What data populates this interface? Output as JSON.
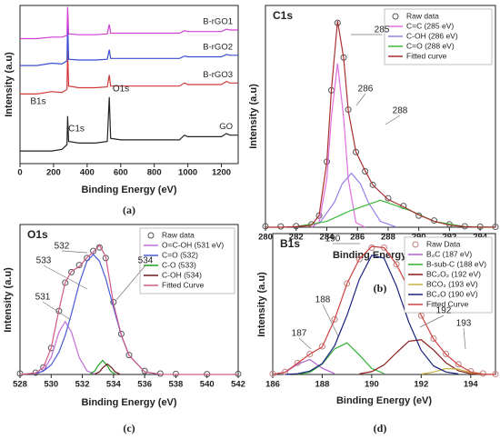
{
  "chart_data": [
    {
      "type": "line",
      "caption": "(a)",
      "xlabel": "Binding Energy (eV)",
      "ylabel": "Intensity (a.u)",
      "xlim": [
        0,
        1300
      ],
      "xticks": [
        0,
        200,
        400,
        600,
        800,
        1000,
        1200
      ],
      "ylim": [
        0,
        100
      ],
      "legend": false,
      "annotations": [
        "C1s",
        "O1s",
        "B1s"
      ],
      "series": [
        {
          "name": "GO",
          "color": "#222222",
          "style": "line",
          "x": [
            0,
            100,
            190,
            250,
            280,
            284,
            290,
            350,
            450,
            520,
            532,
            540,
            600,
            800,
            950,
            980,
            1000,
            1100,
            1200,
            1230,
            1250,
            1300
          ],
          "values": [
            8,
            8,
            8,
            9,
            12,
            30,
            14,
            13,
            13,
            14,
            42,
            16,
            15,
            15,
            15,
            18,
            17,
            17,
            17,
            19,
            18,
            18
          ]
        },
        {
          "name": "B-rGO3",
          "color": "#d03a3a",
          "style": "line",
          "x": [
            0,
            100,
            190,
            250,
            280,
            284,
            290,
            350,
            450,
            520,
            532,
            540,
            600,
            800,
            950,
            980,
            1000,
            1100,
            1200,
            1230,
            1250,
            1300
          ],
          "values": [
            44,
            44,
            45.5,
            45,
            47,
            72,
            49,
            48,
            48,
            48.5,
            56,
            49,
            49,
            49,
            49,
            51,
            50,
            50,
            50,
            52,
            51,
            51
          ]
        },
        {
          "name": "B-rGO2",
          "color": "#3a4fd0",
          "style": "line",
          "x": [
            0,
            100,
            190,
            250,
            280,
            284,
            290,
            350,
            450,
            520,
            532,
            540,
            600,
            800,
            950,
            980,
            1000,
            1100,
            1200,
            1230,
            1250,
            1300
          ],
          "values": [
            62,
            62,
            63.5,
            63,
            65,
            90,
            66,
            65.5,
            65.5,
            66,
            72,
            66.5,
            66.5,
            66.5,
            66.5,
            68,
            67.5,
            67.5,
            67.5,
            69,
            68.5,
            68.5
          ]
        },
        {
          "name": "B-rGO1",
          "color": "#d040d0",
          "style": "line",
          "x": [
            0,
            100,
            190,
            250,
            280,
            284,
            290,
            350,
            450,
            520,
            532,
            540,
            600,
            800,
            950,
            980,
            1000,
            1100,
            1200,
            1230,
            1250,
            1300
          ],
          "values": [
            79,
            79,
            80,
            80,
            81,
            99,
            82,
            81.5,
            81.5,
            82,
            88,
            82.5,
            82.5,
            82.5,
            82.5,
            84,
            83.5,
            83.5,
            83.5,
            85,
            84.5,
            84.5
          ]
        }
      ]
    },
    {
      "type": "line",
      "title": "C1s",
      "caption": "(b)",
      "xlabel": "Binding Energy (eV)",
      "ylabel": "Intensity (a.u)",
      "xlim": [
        280,
        295
      ],
      "xticks": [
        280,
        282,
        284,
        286,
        288,
        290,
        292,
        294
      ],
      "ylim": [
        0,
        115
      ],
      "legend": "upper right",
      "annotations": [
        "285",
        "286",
        "288"
      ],
      "series": [
        {
          "name": "Raw data",
          "color": "#555555",
          "style": "markers",
          "x": [
            280,
            281,
            282,
            283,
            283.5,
            284,
            284.3,
            284.7,
            285.1,
            285.4,
            285.9,
            286.5,
            287,
            288,
            289,
            290,
            291,
            292,
            293,
            294,
            295
          ],
          "values": [
            0.5,
            0.4,
            0.6,
            1.5,
            6,
            34,
            71,
            106,
            88,
            61,
            39,
            29,
            22,
            15,
            11,
            6,
            3.5,
            1.5,
            0.5,
            0.3,
            0.2
          ]
        },
        {
          "name": "C=C (285 eV)",
          "color": "#e070e0",
          "style": "line",
          "x": [
            283,
            283.5,
            284,
            284.3,
            284.7,
            285.1,
            285.4,
            285.9,
            286.5
          ],
          "values": [
            0,
            2.4,
            25,
            57,
            85,
            57,
            25,
            2.4,
            0
          ]
        },
        {
          "name": "C-OH (286 eV)",
          "color": "#9a7fe8",
          "style": "line",
          "x": [
            283.5,
            284.5,
            285,
            285.6,
            286.2,
            286.7,
            287.5,
            288.5
          ],
          "values": [
            1.8,
            13,
            22.4,
            28,
            22.4,
            13,
            3,
            0.2
          ]
        },
        {
          "name": "C=O (288 eV)",
          "color": "#3cb83c",
          "style": "line",
          "x": [
            282,
            284,
            285.5,
            287.5,
            289.5,
            291,
            293,
            295
          ],
          "values": [
            0.3,
            3,
            8.5,
            14,
            8.5,
            3,
            0.3,
            0
          ]
        },
        {
          "name": "Fitted curve",
          "color": "#a83030",
          "style": "line",
          "x": [
            280,
            281,
            282,
            283,
            283.5,
            284,
            284.3,
            284.7,
            285.1,
            285.4,
            285.9,
            286.5,
            287,
            288,
            289,
            290,
            291,
            292,
            293,
            294,
            295
          ],
          "values": [
            0,
            0,
            0.3,
            1,
            6.1,
            33.8,
            70.8,
            107,
            87.8,
            60.4,
            39.1,
            29.3,
            21.9,
            14.4,
            10.6,
            6.4,
            3.1,
            1.1,
            0.3,
            0,
            0
          ]
        }
      ]
    },
    {
      "type": "line",
      "title": "O1s",
      "caption": "(c)",
      "xlabel": "Binding Energy (eV)",
      "ylabel": "Intensity (a.u)",
      "xlim": [
        528,
        542
      ],
      "xticks": [
        528,
        530,
        532,
        534,
        536,
        538,
        540,
        542
      ],
      "ylim": [
        0,
        85
      ],
      "legend": "upper right",
      "annotations": [
        "531",
        "532",
        "533",
        "534"
      ],
      "series": [
        {
          "name": "Raw data",
          "color": "#555555",
          "style": "markers",
          "x": [
            528,
            529,
            529.5,
            530,
            530.5,
            530.9,
            531.3,
            531.8,
            532.3,
            532.7,
            533.1,
            533.5,
            534,
            534.5,
            535,
            536,
            537,
            538,
            540,
            542
          ],
          "values": [
            0.5,
            1,
            4,
            15,
            36,
            52,
            58,
            62,
            66,
            70,
            72,
            66,
            41,
            23,
            11,
            2,
            0.5,
            0.3,
            0.2,
            0.3
          ]
        },
        {
          "name": "O=C-OH (531 eV)",
          "color": "#c070d8",
          "style": "line",
          "x": [
            529,
            529.5,
            530,
            530.5,
            530.9,
            531.3,
            531.8,
            532.3,
            532.8
          ],
          "values": [
            0.2,
            2,
            9.7,
            24,
            30,
            24,
            9.7,
            2,
            0.2
          ]
        },
        {
          "name": "C=O (532)",
          "color": "#4b5bd6",
          "style": "line",
          "x": [
            529,
            529.5,
            530,
            530.5,
            530.9,
            531.3,
            531.8,
            532.3,
            532.7,
            533.1,
            533.5,
            534,
            534.5,
            535,
            536,
            537
          ],
          "values": [
            0.6,
            1.9,
            5.4,
            12.7,
            22.1,
            34.4,
            51.4,
            64.3,
            68,
            64.3,
            54.4,
            37.8,
            22.1,
            10.8,
            1.5,
            0.1
          ]
        },
        {
          "name": "C-O (533)",
          "color": "#20a020",
          "style": "line",
          "x": [
            532.5,
            532.8,
            533,
            533.3,
            533.6,
            533.8,
            534.1
          ],
          "values": [
            0.2,
            2,
            4.9,
            8,
            4.9,
            2,
            0.2
          ]
        },
        {
          "name": "C-OH (534)",
          "color": "#6a1a1a",
          "style": "line",
          "x": [
            532.8,
            533.1,
            533.3,
            533.6,
            533.9,
            534.1,
            534.4
          ],
          "values": [
            0.2,
            1.5,
            3.7,
            6,
            3.7,
            1.5,
            0.2
          ]
        },
        {
          "name": "Fitted Curve",
          "color": "#d05a8a",
          "style": "line",
          "x": [
            528,
            529,
            529.5,
            530,
            530.5,
            530.9,
            531.3,
            531.8,
            532.3,
            532.7,
            533.1,
            533.5,
            534,
            534.5,
            535,
            536,
            537,
            538,
            540,
            542
          ],
          "values": [
            0,
            0.8,
            3.9,
            15.1,
            36.7,
            52.1,
            58.4,
            61.1,
            66.3,
            69.4,
            73.2,
            66.8,
            39.8,
            22.5,
            10.8,
            1.5,
            0.1,
            0,
            0,
            0
          ]
        }
      ]
    },
    {
      "type": "line",
      "title": "B1s",
      "caption": "(d)",
      "xlabel": "Binding Energy (eV)",
      "ylabel": "Intensity (a.u)",
      "xlim": [
        186,
        195
      ],
      "xticks": [
        186,
        188,
        190,
        192,
        194
      ],
      "ylim": [
        0,
        110
      ],
      "legend": "upper right",
      "annotations": [
        "187",
        "188",
        "190",
        "192",
        "193"
      ],
      "series": [
        {
          "name": "Raw Data",
          "color": "#c08080",
          "style": "markers",
          "x": [
            186,
            186.5,
            187,
            187.5,
            188,
            188.5,
            189,
            189.5,
            190,
            190.5,
            191,
            191.5,
            192,
            192.5,
            193,
            193.5,
            194,
            194.5,
            195
          ],
          "values": [
            0.5,
            2,
            9,
            16,
            22,
            43,
            71,
            90,
            99,
            99,
            86,
            67,
            46,
            28,
            16,
            8,
            2.5,
            0.8,
            0.3
          ]
        },
        {
          "name": "B₄C (187 eV)",
          "color": "#b060d0",
          "style": "line",
          "x": [
            186,
            186.5,
            187,
            187.5,
            188,
            188.5
          ],
          "values": [
            0.1,
            1.6,
            8,
            11.7,
            4.9,
            0.6
          ]
        },
        {
          "name": "B-sub-C (188 eV)",
          "color": "#30b030",
          "style": "line",
          "x": [
            187,
            187.5,
            188,
            188.5,
            189,
            189.5,
            190,
            190.5
          ],
          "values": [
            0.2,
            1.6,
            8.1,
            20,
            24.7,
            15.2,
            4.7,
            0.7
          ]
        },
        {
          "name": "BC₂O₂ (192 eV)",
          "color": "#8b1a1a",
          "style": "line",
          "x": [
            189.5,
            190,
            190.5,
            191,
            191.5,
            192,
            192.5,
            193,
            193.5,
            194,
            194.5
          ],
          "values": [
            0.5,
            2.2,
            7.5,
            17,
            26,
            27.1,
            19.1,
            9.1,
            2.9,
            0.6,
            0.1
          ]
        },
        {
          "name": "BCO₂ (193 eV)",
          "color": "#c8b040",
          "style": "line",
          "x": [
            192,
            192.5,
            193,
            193.5,
            194,
            194.5
          ],
          "values": [
            0.3,
            1.9,
            4.6,
            4.2,
            1.4,
            0.2
          ]
        },
        {
          "name": "BC₂O (190 eV)",
          "color": "#1a237e",
          "style": "line",
          "x": [
            186.5,
            187,
            187.5,
            188,
            188.5,
            189,
            189.5,
            190,
            190.5,
            191,
            191.5,
            192,
            192.5,
            193,
            193.5
          ],
          "values": [
            0.1,
            0.6,
            2.6,
            8.5,
            22.4,
            46.2,
            74.4,
            93.1,
            90.8,
            69,
            40.8,
            18.8,
            6.7,
            1.9,
            0.4
          ]
        },
        {
          "name": "Fitted Curve",
          "color": "#d04040",
          "style": "line",
          "x": [
            186,
            186.5,
            187,
            187.5,
            188,
            188.5,
            189,
            189.5,
            190,
            190.5,
            191,
            191.5,
            192,
            192.5,
            193,
            193.5,
            194,
            194.5,
            195
          ],
          "values": [
            0.1,
            1.7,
            8.8,
            15.9,
            21.5,
            43,
            70.9,
            90.1,
            100,
            99,
            86,
            66.8,
            46.2,
            27.7,
            15.6,
            7.5,
            2,
            0.3,
            0
          ]
        }
      ]
    }
  ]
}
